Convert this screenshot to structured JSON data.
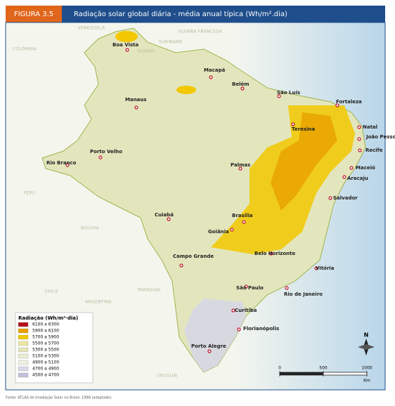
{
  "header": {
    "label": "FIGURA 3.5",
    "title": "Radiação solar global diária - média anual típica (Wh/m².dia)"
  },
  "countries": [
    "VENEZUELA",
    "GUIANA FRANCESA",
    "COLÔMBIA",
    "SURINAME",
    "GUIANA",
    "PERU",
    "BOLÍVIA",
    "CHILE",
    "PARAGUAI",
    "ARGENTINA",
    "URUGUAI"
  ],
  "cities": [
    "Boa Vista",
    "Macapá",
    "Belém",
    "São Luís",
    "Fortaleza",
    "Manaus",
    "Teresina",
    "Natal",
    "João Pessoa",
    "Recife",
    "Porto Velho",
    "Rio Branco",
    "Palmas",
    "Maceió",
    "Aracaju",
    "Salvador",
    "Cuiabá",
    "Brasília",
    "Goiânia",
    "Belo Horizonte",
    "Campo Grande",
    "Vitória",
    "São Paulo",
    "Rio de Janeiro",
    "Curitiba",
    "Florianópolis",
    "Porto Alegre"
  ],
  "legend": {
    "title": "Radiação (Wh/m²·dia)",
    "items": [
      {
        "label": "6100 a 6300",
        "color": "#b5121b"
      },
      {
        "label": "5900 a 6100",
        "color": "#e8a000"
      },
      {
        "label": "5700 a 5900",
        "color": "#f2c800"
      },
      {
        "label": "5500 a 5700",
        "color": "#ece6a4"
      },
      {
        "label": "5300 a 5500",
        "color": "#e2e5b9"
      },
      {
        "label": "5100 a 5300",
        "color": "#eaedd2"
      },
      {
        "label": "4900 a 5100",
        "color": "#f0f0e4"
      },
      {
        "label": "4700 a 4900",
        "color": "#d9d9ea"
      },
      {
        "label": "4500 a 4700",
        "color": "#c2c3dd"
      }
    ]
  },
  "scale": {
    "ticks": [
      0,
      500,
      1000
    ],
    "unit": "Km"
  },
  "north": "N",
  "source": "Fonte: ATLAS de Irradiação Solar no Brasil. 1998 (adaptado)."
}
